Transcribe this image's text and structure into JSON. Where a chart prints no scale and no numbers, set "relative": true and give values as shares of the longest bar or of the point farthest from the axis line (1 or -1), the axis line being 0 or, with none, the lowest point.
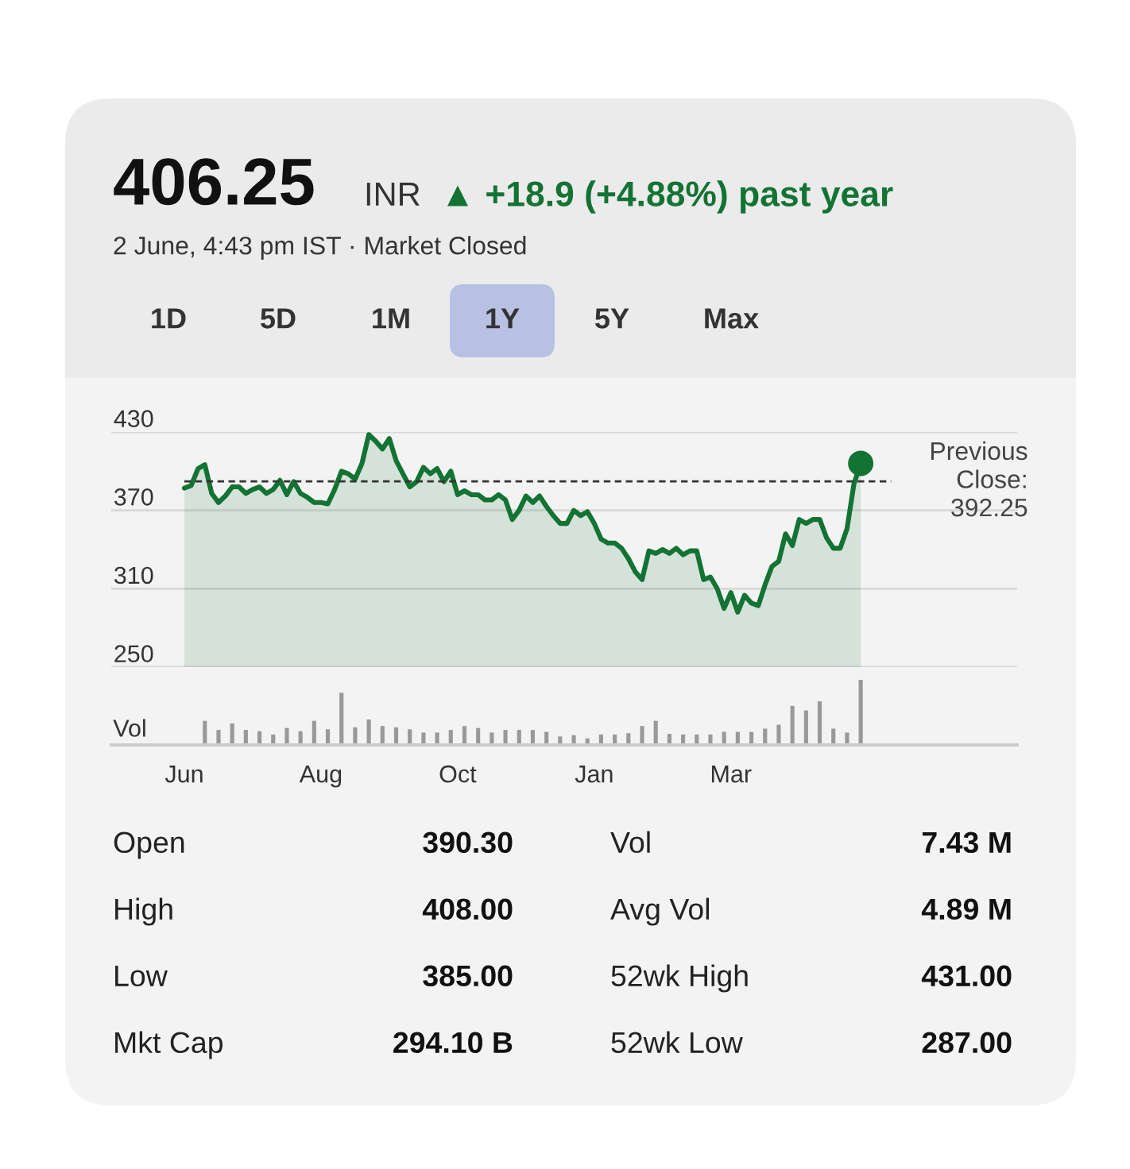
{
  "chart_data": [
    {
      "type": "area",
      "title": "406.25",
      "subtitle": "2 June, 4:43 pm IST · Market Closed",
      "annotations": [
        "INR",
        "▲ +18.9 (+4.88%) past year",
        "1D",
        "5D",
        "1M",
        "1Y",
        "5Y",
        "Max",
        "Open",
        "390.30",
        "Vol",
        "7.43 M",
        "High",
        "408.00",
        "Avg Vol",
        "4.89 M",
        "Low",
        "385.00",
        "52wk High",
        "431.00",
        "Mkt Cap",
        "294.10 B",
        "52wk Low",
        "287.00"
      ],
      "categories": [
        null,
        null,
        null,
        null,
        null,
        null,
        null,
        null,
        null,
        null,
        null,
        null,
        null,
        null,
        null,
        null,
        null,
        null,
        null,
        null,
        null,
        null,
        null,
        null,
        null,
        null,
        null,
        null,
        null,
        null,
        null,
        null,
        null,
        null,
        null,
        null,
        null,
        null,
        null,
        null,
        null,
        null,
        null,
        null,
        null,
        null,
        null,
        null,
        null,
        null,
        null,
        null,
        null,
        null,
        null,
        null,
        null,
        null,
        null,
        null,
        null,
        null,
        null,
        null,
        null,
        null,
        null,
        null,
        null,
        null,
        null,
        null,
        null,
        null,
        null,
        null,
        null,
        null,
        null,
        null,
        null,
        null,
        null,
        null,
        null,
        null,
        null,
        null,
        null,
        null,
        null,
        null,
        null,
        null,
        null,
        null,
        null,
        null,
        null,
        null
      ],
      "series": [
        {
          "type": "area",
          "color": "#137333",
          "values": [
            387,
            389,
            402,
            405,
            383,
            376,
            381,
            388,
            388,
            383,
            386,
            388,
            383,
            386,
            393,
            382,
            392,
            383,
            380,
            376,
            376,
            375,
            386,
            400,
            398,
            394,
            406,
            428,
            423,
            417,
            425,
            408,
            398,
            388,
            392,
            403,
            398,
            402,
            392,
            400,
            382,
            385,
            382,
            382,
            378,
            378,
            382,
            378,
            363,
            370,
            381,
            376,
            381,
            373,
            366,
            360,
            360,
            370,
            366,
            369,
            360,
            348,
            345,
            345,
            341,
            333,
            323,
            317,
            339,
            337,
            340,
            337,
            341,
            336,
            339,
            339,
            317,
            319,
            310,
            295,
            307,
            292,
            305,
            299,
            297,
            313,
            327,
            331,
            352,
            343,
            363,
            360,
            363,
            363,
            349,
            341,
            341,
            356,
            390,
            406
          ]
        },
        {
          "type": "scatter",
          "color": "#137333",
          "marker": "circle",
          "values": [
            null,
            null,
            null,
            null,
            null,
            null,
            null,
            null,
            null,
            null,
            null,
            null,
            null,
            null,
            null,
            null,
            null,
            null,
            null,
            null,
            null,
            null,
            null,
            null,
            null,
            null,
            null,
            null,
            null,
            null,
            null,
            null,
            null,
            null,
            null,
            null,
            null,
            null,
            null,
            null,
            null,
            null,
            null,
            null,
            null,
            null,
            null,
            null,
            null,
            null,
            null,
            null,
            null,
            null,
            null,
            null,
            null,
            null,
            null,
            null,
            null,
            null,
            null,
            null,
            null,
            null,
            null,
            null,
            null,
            null,
            null,
            null,
            null,
            null,
            null,
            null,
            null,
            null,
            null,
            null,
            null,
            null,
            null,
            null,
            null,
            null,
            null,
            null,
            null,
            null,
            null,
            null,
            null,
            null,
            null,
            null,
            null,
            null,
            null,
            406
          ]
        }
      ],
      "ylim": [
        250,
        430
      ],
      "yticks": [
        250,
        310,
        370,
        430
      ],
      "grid": "y",
      "tick_labels": "y",
      "ref_lines": [
        {
          "axis": "y",
          "value": 392.25,
          "label": "Previous Close: 392.25",
          "color": "#333333",
          "line_style": "dashed"
        }
      ]
    },
    {
      "type": "bar",
      "relative": true,
      "ylabel": "Vol",
      "color": "#999999",
      "tick_labels": "x",
      "categories": [
        "Jun",
        null,
        null,
        null,
        null,
        null,
        null,
        null,
        null,
        null,
        null,
        null,
        null,
        null,
        null,
        null,
        null,
        null,
        null,
        null,
        "Aug",
        null,
        null,
        null,
        null,
        null,
        null,
        null,
        null,
        null,
        null,
        null,
        null,
        null,
        null,
        null,
        null,
        null,
        null,
        null,
        "Oct",
        null,
        null,
        null,
        null,
        null,
        null,
        null,
        null,
        null,
        null,
        null,
        null,
        null,
        null,
        null,
        null,
        null,
        null,
        null,
        "Jan",
        null,
        null,
        null,
        null,
        null,
        null,
        null,
        null,
        null,
        null,
        null,
        null,
        null,
        null,
        null,
        null,
        null,
        null,
        null,
        "Mar",
        null,
        null,
        null,
        null,
        null,
        null,
        null,
        null,
        null,
        null,
        null,
        null,
        null,
        null,
        null,
        null,
        null,
        null,
        null
      ],
      "values": [
        null,
        null,
        null,
        0.37,
        null,
        0.23,
        null,
        0.33,
        null,
        0.23,
        null,
        0.21,
        null,
        0.16,
        null,
        0.26,
        null,
        0.21,
        null,
        0.37,
        null,
        0.24,
        null,
        0.8,
        null,
        0.27,
        null,
        0.39,
        null,
        0.29,
        null,
        0.27,
        null,
        0.24,
        null,
        0.19,
        null,
        0.19,
        null,
        0.23,
        null,
        0.29,
        null,
        0.26,
        null,
        0.19,
        null,
        0.23,
        null,
        0.23,
        null,
        0.23,
        null,
        0.2,
        null,
        0.13,
        null,
        0.15,
        null,
        0.1,
        null,
        0.16,
        null,
        0.16,
        null,
        0.18,
        null,
        0.29,
        null,
        0.37,
        null,
        0.17,
        null,
        0.16,
        null,
        0.16,
        null,
        0.16,
        null,
        0.2,
        null,
        0.2,
        null,
        0.2,
        null,
        0.25,
        null,
        0.31,
        null,
        0.6,
        null,
        0.53,
        null,
        0.67,
        null,
        0.25,
        null,
        0.19,
        null,
        1
      ]
    }
  ]
}
